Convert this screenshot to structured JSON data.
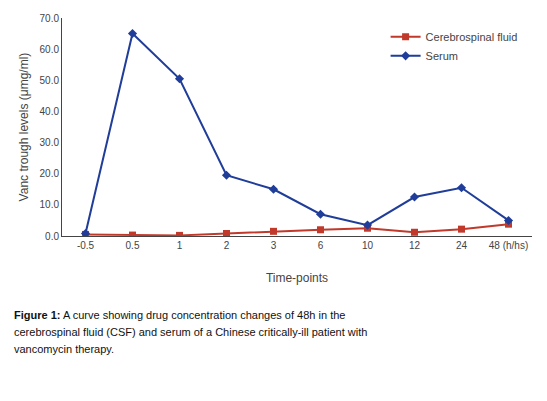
{
  "chart_data": {
    "type": "line",
    "xlabel": "Time-points",
    "ylabel": "Vanc trough levels (μmg/ml)",
    "categories": [
      "-0.5",
      "0.5",
      "1",
      "2",
      "3",
      "6",
      "10",
      "12",
      "24",
      "48 (h/hs)"
    ],
    "series": [
      {
        "name": "Cerebrospinal fluid",
        "color": "#c0392b",
        "marker": "square",
        "values": [
          0.5,
          0.3,
          0.2,
          0.8,
          1.5,
          2.0,
          2.5,
          1.2,
          2.2,
          3.8
        ]
      },
      {
        "name": "Serum",
        "color": "#1f3d99",
        "marker": "diamond",
        "values": [
          0.8,
          65.0,
          50.5,
          19.5,
          15.0,
          7.0,
          3.5,
          12.5,
          15.5,
          5.0
        ]
      }
    ],
    "ylim": [
      0,
      70.0
    ],
    "yticks": [
      {
        "value": 0,
        "label": "0.0"
      },
      {
        "value": 10,
        "label": "10.0"
      },
      {
        "value": 20,
        "label": "20.0"
      },
      {
        "value": 30,
        "label": "30.0"
      },
      {
        "value": 40,
        "label": "40.0"
      },
      {
        "value": 50,
        "label": "50.0"
      },
      {
        "value": 60,
        "label": "60.0"
      },
      {
        "value": 70,
        "label": "70.0"
      }
    ],
    "grid": false,
    "legend": "upper right",
    "annotations": [
      "Figure 1: A curve showing drug concentration changes of 48h in the",
      "cerebrospinal fluid (CSF) and serum of a Chinese critically-ill patient with",
      "vancomycin therapy."
    ]
  }
}
